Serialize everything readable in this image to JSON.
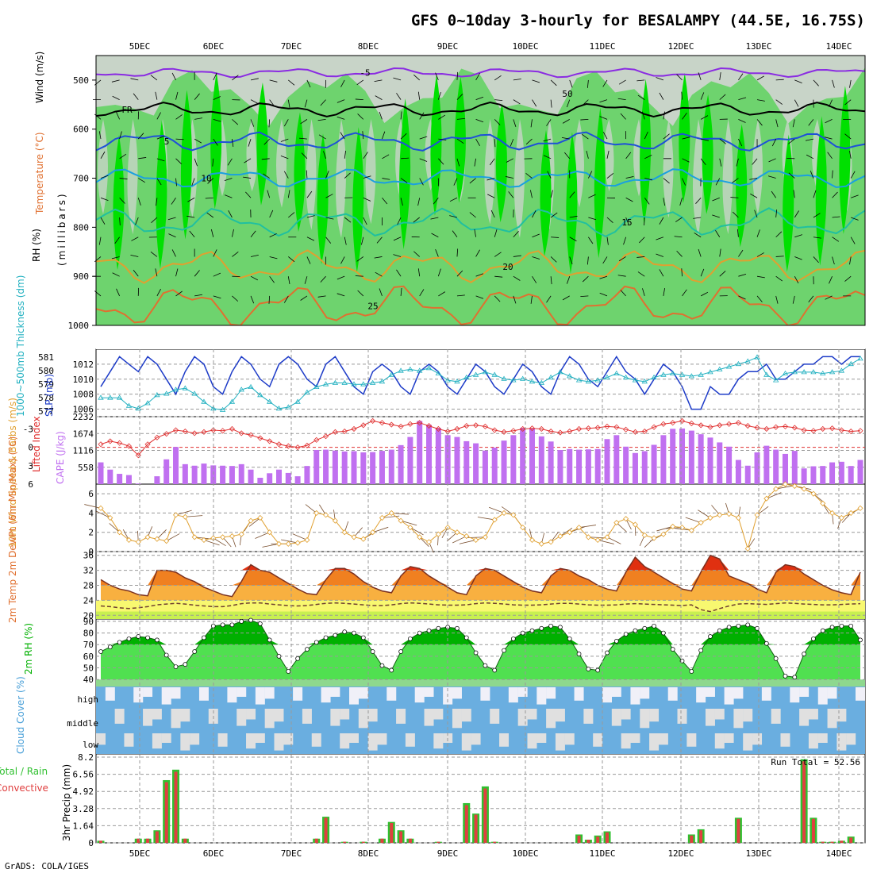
{
  "title": "GFS 0~10day 3-hourly for BESALAMPY (44.5E, 16.75S)",
  "footer": "GrADS: COLA/IGES",
  "days": [
    "5DEC",
    "6DEC",
    "7DEC",
    "8DEC",
    "9DEC",
    "10DEC",
    "11DEC",
    "12DEC",
    "13DEC",
    "14DEC"
  ],
  "colors": {
    "rh_dark": "#00e000",
    "rh_mid": "#6ed36e",
    "rh_light": "#c8d4c8",
    "temp_5": "#8a2be2",
    "freeze": "#000000",
    "temp_cool": "#1e50d8",
    "temp_10": "#1aa0e0",
    "temp_15": "#20c0a0",
    "temp_20": "#e0a030",
    "temp_25": "#e07030",
    "slp": "#1e3cc8",
    "thick": "#20b0c0",
    "cape": "#c070f0",
    "li": "#e03030",
    "wind": "#e0a030",
    "temp_fill": "#f08020",
    "rh2m": "#00b000",
    "cloud": "#6aaee0",
    "precip_total": "#30c030",
    "precip_conv": "#e04040"
  },
  "chart_data": [
    {
      "type": "heatmap",
      "name": "upper_air",
      "ylabel_rh": "RH (%)",
      "ylabel_temp": "Temperature (°C)",
      "ylabel_wind": "Wind (m/s)",
      "ylabel_units": "(millibars)",
      "yticks": [
        "500",
        "600",
        "700",
        "800",
        "900",
        "1000"
      ],
      "ylim": [
        1000,
        450
      ],
      "contour_labels": [
        "-5",
        "FR",
        "5",
        "10",
        "15",
        "20",
        "25",
        "50"
      ]
    },
    {
      "type": "line",
      "name": "pressure",
      "ylabel_left": "1000~500mb Thickness (dm)",
      "ylabel_right": "SLP (mb)",
      "yticks_left": [
        "581",
        "580",
        "579",
        "578",
        "577"
      ],
      "yticks_right": [
        "1012",
        "1010",
        "1008",
        "1006"
      ],
      "ylim_left": [
        576.6,
        581.6
      ],
      "ylim_right": [
        1005,
        1014
      ],
      "slp": [
        1009,
        1011,
        1013,
        1012,
        1011,
        1013,
        1012,
        1010,
        1008,
        1011,
        1013,
        1012,
        1009,
        1008,
        1011,
        1013,
        1012,
        1010,
        1009,
        1012,
        1013,
        1012,
        1010,
        1009,
        1012,
        1013,
        1011,
        1009,
        1008,
        1011,
        1012,
        1011,
        1009,
        1008,
        1011,
        1012,
        1011,
        1009,
        1008,
        1010,
        1012,
        1011,
        1009,
        1008,
        1010,
        1012,
        1011,
        1009,
        1008,
        1011,
        1013,
        1012,
        1010,
        1009,
        1011,
        1013,
        1011,
        1010,
        1008,
        1010,
        1012,
        1011,
        1009,
        1006,
        1006,
        1009,
        1008,
        1008,
        1010,
        1011,
        1011,
        1012,
        1010,
        1010,
        1011,
        1012,
        1012,
        1013,
        1013,
        1012,
        1013,
        1013
      ],
      "thickness": [
        578.0,
        578.0,
        578.0,
        577.4,
        577.2,
        577.6,
        578.2,
        578.3,
        578.6,
        578.7,
        578.3,
        577.7,
        577.2,
        577.1,
        577.7,
        578.6,
        578.8,
        578.2,
        577.7,
        577.2,
        577.3,
        577.7,
        578.4,
        578.8,
        579.0,
        579.1,
        579.1,
        579.0,
        579.0,
        579.1,
        579.2,
        579.7,
        580.0,
        580.1,
        580.0,
        580.2,
        579.8,
        579.3,
        579.2,
        579.5,
        579.7,
        579.9,
        579.7,
        579.4,
        579.3,
        579.4,
        579.2,
        579.1,
        579.5,
        579.9,
        579.6,
        579.3,
        579.2,
        579.3,
        579.5,
        579.8,
        579.5,
        579.3,
        579.2,
        579.5,
        579.7,
        579.8,
        579.7,
        579.6,
        579.7,
        579.9,
        580.1,
        580.3,
        580.5,
        580.7,
        581.0,
        579.7,
        579.3,
        579.8,
        579.9,
        579.9,
        579.9,
        579.8,
        579.9,
        580.0,
        580.5,
        580.9
      ]
    },
    {
      "type": "bar",
      "name": "cape_li",
      "ylabel_left": "Lifted Index",
      "ylabel_right": "CAPE (J/kg)",
      "yticks_left": [
        "-3",
        "0",
        "3",
        "6"
      ],
      "yticks_right": [
        "2232",
        "1674",
        "1116",
        "558"
      ],
      "ylim_cape": [
        0,
        2232
      ],
      "ylim_li": [
        6,
        -5
      ],
      "cape": [
        720,
        480,
        340,
        300,
        20,
        0,
        260,
        820,
        1230,
        660,
        610,
        680,
        620,
        610,
        600,
        660,
        480,
        210,
        360,
        480,
        370,
        260,
        600,
        1130,
        1140,
        1110,
        1080,
        1090,
        1050,
        1060,
        1100,
        1140,
        1290,
        1560,
        2090,
        1960,
        1860,
        1620,
        1560,
        1420,
        1350,
        1110,
        1210,
        1440,
        1620,
        1860,
        1850,
        1580,
        1410,
        1130,
        1160,
        1140,
        1150,
        1160,
        1490,
        1620,
        1240,
        1030,
        1090,
        1300,
        1620,
        1830,
        1840,
        1770,
        1650,
        1540,
        1380,
        1240,
        800,
        610,
        1050,
        1270,
        1140,
        1000,
        1100,
        520,
        590,
        600,
        720,
        740,
        600,
        800
      ],
      "li": [
        -0.5,
        -1.0,
        -0.7,
        -0.2,
        1.3,
        -0.5,
        -1.6,
        -2.2,
        -2.8,
        -2.6,
        -2.3,
        -2.5,
        -2.8,
        -2.7,
        -3.0,
        -2.3,
        -2.0,
        -1.5,
        -1.0,
        -0.5,
        -0.2,
        0.0,
        -0.3,
        -1.2,
        -1.8,
        -2.5,
        -2.6,
        -3.0,
        -3.6,
        -4.3,
        -4.0,
        -3.7,
        -3.4,
        -3.8,
        -4.0,
        -3.5,
        -3.0,
        -2.6,
        -3.0,
        -3.5,
        -3.6,
        -3.4,
        -2.8,
        -2.5,
        -2.7,
        -3.0,
        -3.1,
        -3.0,
        -2.6,
        -2.4,
        -2.6,
        -3.0,
        -3.1,
        -3.2,
        -3.4,
        -3.3,
        -2.9,
        -2.5,
        -2.6,
        -3.3,
        -3.8,
        -4.0,
        -4.3,
        -3.9,
        -3.6,
        -3.3,
        -3.6,
        -3.8,
        -4.0,
        -3.5,
        -3.2,
        -3.0,
        -3.3,
        -3.4,
        -3.2,
        -2.8,
        -2.7,
        -3.0,
        -3.1,
        -2.8,
        -2.6,
        -2.7
      ]
    },
    {
      "type": "line",
      "name": "wind10m",
      "ylabel": "10m Wind Speed & Barbs (m/s)",
      "yticks": [
        "6",
        "4",
        "2",
        "0"
      ],
      "ylim": [
        0,
        7
      ],
      "speed": [
        4.5,
        3.5,
        2.0,
        1.2,
        1.0,
        1.5,
        1.3,
        1.1,
        3.8,
        3.6,
        1.5,
        1.2,
        1.4,
        1.5,
        1.6,
        1.8,
        3.2,
        3.5,
        2.0,
        0.8,
        0.8,
        0.9,
        1.2,
        4.0,
        3.8,
        3.2,
        2.0,
        1.5,
        1.3,
        2.0,
        3.5,
        4.0,
        3.2,
        2.5,
        1.5,
        1.0,
        1.8,
        2.5,
        2.0,
        1.6,
        1.2,
        1.5,
        3.3,
        4.0,
        3.8,
        2.5,
        1.2,
        0.8,
        1.0,
        1.6,
        2.0,
        2.5,
        1.5,
        1.2,
        1.5,
        3.0,
        3.4,
        2.8,
        1.7,
        1.4,
        1.8,
        2.6,
        2.5,
        2.2,
        3.0,
        3.5,
        3.8,
        3.9,
        3.5,
        0.3,
        3.8,
        5.5,
        6.5,
        7.0,
        6.8,
        6.5,
        6.0,
        5.0,
        4.0,
        3.5,
        4.0,
        4.5
      ]
    },
    {
      "type": "area",
      "name": "temp2m",
      "ylabel": "2m Temp 2m DewPt (6hr Min/Max) (°C)",
      "yticks": [
        "36",
        "32",
        "28",
        "24",
        "20"
      ],
      "ylim": [
        19,
        37
      ],
      "temp": [
        29.5,
        28.0,
        27.0,
        26.5,
        25.5,
        25.2,
        32.0,
        32.0,
        31.5,
        30.0,
        29.0,
        27.5,
        26.5,
        25.5,
        25.0,
        29.0,
        33.5,
        32.0,
        31.5,
        30.0,
        28.5,
        27.0,
        25.8,
        25.5,
        29.5,
        32.5,
        32.5,
        31.0,
        29.0,
        27.5,
        26.5,
        26.0,
        30.5,
        33.0,
        32.5,
        30.5,
        29.0,
        27.5,
        26.0,
        25.5,
        30.5,
        32.5,
        32.0,
        30.5,
        29.0,
        27.5,
        26.5,
        26.0,
        30.5,
        32.5,
        32.0,
        30.5,
        29.5,
        28.0,
        27.0,
        26.5,
        31.5,
        35.5,
        33.0,
        31.5,
        30.0,
        28.5,
        27.0,
        26.5,
        31.5,
        36.0,
        35.0,
        30.5,
        29.5,
        28.5,
        27.0,
        26.0,
        31.5,
        33.5,
        33.0,
        31.0,
        29.5,
        28.0,
        26.8,
        26.0,
        25.5,
        31.5
      ],
      "dewpt": [
        22.5,
        22.3,
        22.0,
        21.8,
        22.0,
        22.3,
        22.8,
        23.0,
        23.2,
        23.0,
        22.7,
        22.5,
        22.3,
        22.3,
        22.6,
        23.1,
        23.3,
        23.3,
        23.0,
        22.8,
        22.6,
        22.5,
        22.6,
        22.9,
        23.2,
        23.3,
        23.2,
        23.0,
        22.8,
        22.6,
        22.6,
        22.8,
        23.1,
        23.3,
        23.2,
        23.0,
        22.8,
        22.7,
        22.7,
        22.8,
        23.1,
        23.3,
        23.2,
        23.0,
        22.8,
        22.7,
        22.7,
        22.8,
        23.0,
        23.2,
        23.2,
        23.0,
        22.8,
        22.7,
        22.7,
        22.8,
        23.0,
        23.1,
        23.0,
        22.9,
        22.8,
        22.7,
        22.6,
        22.8,
        21.5,
        21.0,
        21.8,
        22.5,
        23.0,
        23.1,
        23.0,
        22.9,
        23.1,
        23.3,
        23.2,
        23.0,
        22.9,
        22.8,
        22.8,
        22.9,
        23.0,
        23.1
      ]
    },
    {
      "type": "area",
      "name": "rh2m",
      "ylabel": "2m RH (%)",
      "yticks": [
        "90",
        "80",
        "70",
        "60",
        "50",
        "40"
      ],
      "ylim": [
        34,
        92
      ],
      "rh": [
        64,
        68,
        72,
        75,
        77,
        76,
        74,
        61,
        51,
        53,
        64,
        76,
        86,
        87,
        87,
        90,
        91,
        88,
        74,
        60,
        47,
        58,
        66,
        72,
        76,
        78,
        81,
        80,
        76,
        64,
        52,
        48,
        64,
        75,
        80,
        82,
        84,
        85,
        84,
        76,
        63,
        52,
        48,
        65,
        75,
        80,
        82,
        84,
        86,
        85,
        75,
        62,
        49,
        48,
        63,
        73,
        79,
        82,
        84,
        86,
        80,
        66,
        56,
        47,
        65,
        77,
        82,
        85,
        86,
        87,
        84,
        71,
        58,
        43,
        42,
        62,
        75,
        82,
        85,
        86,
        86,
        74
      ]
    },
    {
      "type": "area",
      "name": "cloud",
      "ylabel": "Cloud Cover (%)",
      "layers": [
        "high",
        "middle",
        "low"
      ]
    },
    {
      "type": "bar",
      "name": "precip",
      "ylabel_left": "Total / Rain",
      "ylabel_left2": "Convective",
      "ylabel": "3hr Precip (mm)",
      "yticks": [
        "8.2",
        "6.56",
        "4.92",
        "3.28",
        "1.64",
        "0"
      ],
      "ylim": [
        0,
        8.2
      ],
      "run_total": "Run Total = 52.56",
      "total": [
        0.2,
        0.0,
        0.0,
        0.0,
        0.4,
        0.4,
        1.2,
        6.0,
        7.0,
        0.4,
        0.0,
        0.0,
        0.0,
        0.0,
        0.0,
        0.0,
        0.0,
        0.0,
        0.0,
        0.0,
        0.0,
        0.0,
        0.0,
        0.4,
        2.5,
        0.0,
        0.1,
        0.0,
        0.1,
        0.0,
        0.4,
        2.0,
        1.2,
        0.4,
        0.0,
        0.0,
        0.1,
        0.0,
        0.0,
        3.8,
        2.8,
        5.4,
        0.1,
        0.0,
        0.0,
        0.0,
        0.0,
        0.0,
        0.0,
        0.0,
        0.0,
        0.8,
        0.3,
        0.7,
        1.1,
        0.0,
        0.0,
        0.0,
        0.0,
        0.0,
        0.0,
        0.0,
        0.0,
        0.8,
        1.3,
        0.0,
        0.0,
        0.0,
        2.4,
        0.0,
        0.0,
        0.0,
        0.0,
        0.0,
        0.0,
        8.0,
        2.4,
        0.1,
        0.1,
        0.2,
        0.6,
        0.0
      ],
      "conv": [
        0.2,
        0.0,
        0.0,
        0.0,
        0.4,
        0.4,
        1.1,
        5.8,
        6.8,
        0.4,
        0.0,
        0.0,
        0.0,
        0.0,
        0.0,
        0.0,
        0.0,
        0.0,
        0.0,
        0.0,
        0.0,
        0.0,
        0.0,
        0.4,
        2.4,
        0.0,
        0.1,
        0.0,
        0.1,
        0.0,
        0.4,
        1.9,
        1.1,
        0.4,
        0.0,
        0.0,
        0.1,
        0.0,
        0.0,
        3.6,
        2.7,
        5.2,
        0.1,
        0.0,
        0.0,
        0.0,
        0.0,
        0.0,
        0.0,
        0.0,
        0.0,
        0.7,
        0.3,
        0.6,
        1.0,
        0.0,
        0.0,
        0.0,
        0.0,
        0.0,
        0.0,
        0.0,
        0.0,
        0.7,
        1.2,
        0.0,
        0.0,
        0.0,
        2.3,
        0.0,
        0.0,
        0.0,
        0.0,
        0.0,
        0.0,
        7.8,
        2.3,
        0.1,
        0.1,
        0.2,
        0.5,
        0.0
      ]
    }
  ]
}
